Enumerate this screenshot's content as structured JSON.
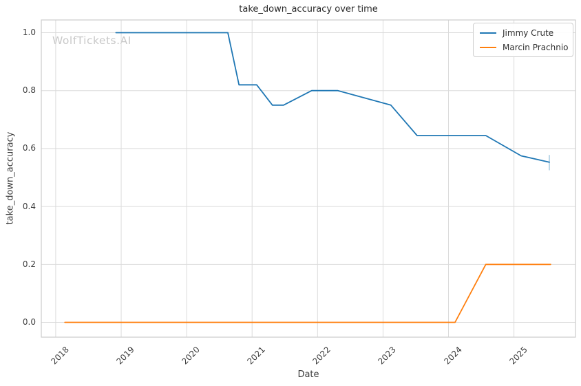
{
  "colors": {
    "background": "#ffffff",
    "grid": "#dbdbdb",
    "spine": "#cccccc",
    "tick_text": "#3d3d3d",
    "title_text": "#262626",
    "watermark_text": "#c8c8c8"
  },
  "chart_data": {
    "type": "line",
    "title": "take_down_accuracy over time",
    "xlabel": "Date",
    "ylabel": "take_down_accuracy",
    "watermark": "WolfTickets.AI",
    "grid": true,
    "legend_position": "upper right",
    "xlim": [
      2017.78,
      2025.94
    ],
    "ylim": [
      -0.051,
      1.044
    ],
    "x_ticks": [
      2018,
      2019,
      2020,
      2021,
      2022,
      2023,
      2024,
      2025
    ],
    "x_tick_labels": [
      "2018",
      "2019",
      "2020",
      "2021",
      "2022",
      "2023",
      "2024",
      "2025"
    ],
    "y_ticks": [
      0.0,
      0.2,
      0.4,
      0.6,
      0.8,
      1.0
    ],
    "y_tick_labels": [
      "0.0",
      "0.2",
      "0.4",
      "0.6",
      "0.8",
      "1.0"
    ],
    "series": [
      {
        "name": "Jimmy Crute",
        "color": "#1f77b4",
        "x": [
          2018.92,
          2020.63,
          2020.8,
          2021.07,
          2021.31,
          2021.48,
          2021.91,
          2022.31,
          2023.12,
          2023.52,
          2024.57,
          2025.11,
          2025.54
        ],
        "y": [
          1.0,
          1.0,
          0.82,
          0.82,
          0.75,
          0.75,
          0.8,
          0.8,
          0.75,
          0.645,
          0.645,
          0.575,
          0.553
        ],
        "error_bar": {
          "x": 2025.54,
          "low": 0.525,
          "high": 0.578,
          "color": "#aacde4"
        }
      },
      {
        "name": "Marcin Prachnio",
        "color": "#ff7f0e",
        "x": [
          2018.14,
          2024.1,
          2024.57,
          2025.56
        ],
        "y": [
          0.0,
          0.0,
          0.2,
          0.2
        ]
      }
    ]
  }
}
